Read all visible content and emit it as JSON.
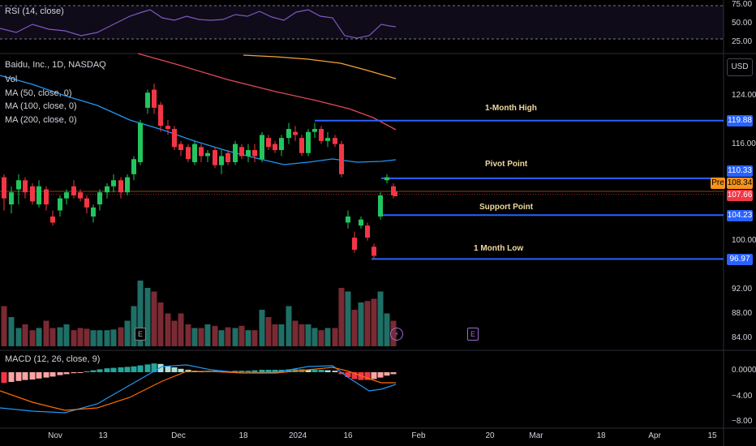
{
  "rsi_pane": {
    "label": "RSI (14, close)",
    "levels": [
      "75.00",
      "50.00",
      "25.00"
    ]
  },
  "main_pane": {
    "symbol_line": "Baidu, Inc., 1D, NASDAQ",
    "legend": [
      "Vol",
      "MA (50, close, 0)",
      "MA (100, close, 0)",
      "MA (200, close, 0)"
    ],
    "currency": "USD",
    "price_axis": [
      "124.00",
      "116.00",
      "100.00",
      "92.00",
      "88.00",
      "84.00"
    ],
    "tags": [
      {
        "name": "1-month-high",
        "text": "119.88",
        "color": "#2962ff",
        "price": 119.88
      },
      {
        "name": "pivot",
        "text": "110.33",
        "color": "#2962ff",
        "price": 110.33
      },
      {
        "name": "pre-market",
        "text": "108.34",
        "color": "#f7931a",
        "price": 108.34
      },
      {
        "name": "last-price",
        "text": "107.66",
        "color": "#f23645",
        "price": 107.66
      },
      {
        "name": "support",
        "text": "104.23",
        "color": "#2962ff",
        "price": 104.23
      },
      {
        "name": "1-month-low",
        "text": "96.97",
        "color": "#2962ff",
        "price": 96.97
      }
    ],
    "pre_label": "Pre",
    "level_labels": {
      "high": "1-Month High",
      "pivot": "Pivot Point",
      "support": "Support Point",
      "low": "1 Month Low"
    },
    "event_badge": "E"
  },
  "macd_pane": {
    "label": "MACD (12, 26, close, 9)",
    "levels": [
      "0.0000",
      "−4.00",
      "−8.00"
    ]
  },
  "time_axis": [
    "Nov",
    "13",
    "Dec",
    "18",
    "2024",
    "16",
    "Feb",
    "20",
    "Mar",
    "18",
    "Apr",
    "15"
  ],
  "colors": {
    "up": "#22c55e",
    "down": "#f23645",
    "level_line": "#2962ff",
    "ma50": "#2196f3",
    "ma100": "#e04a5a",
    "ma200": "#f2a33a"
  }
}
